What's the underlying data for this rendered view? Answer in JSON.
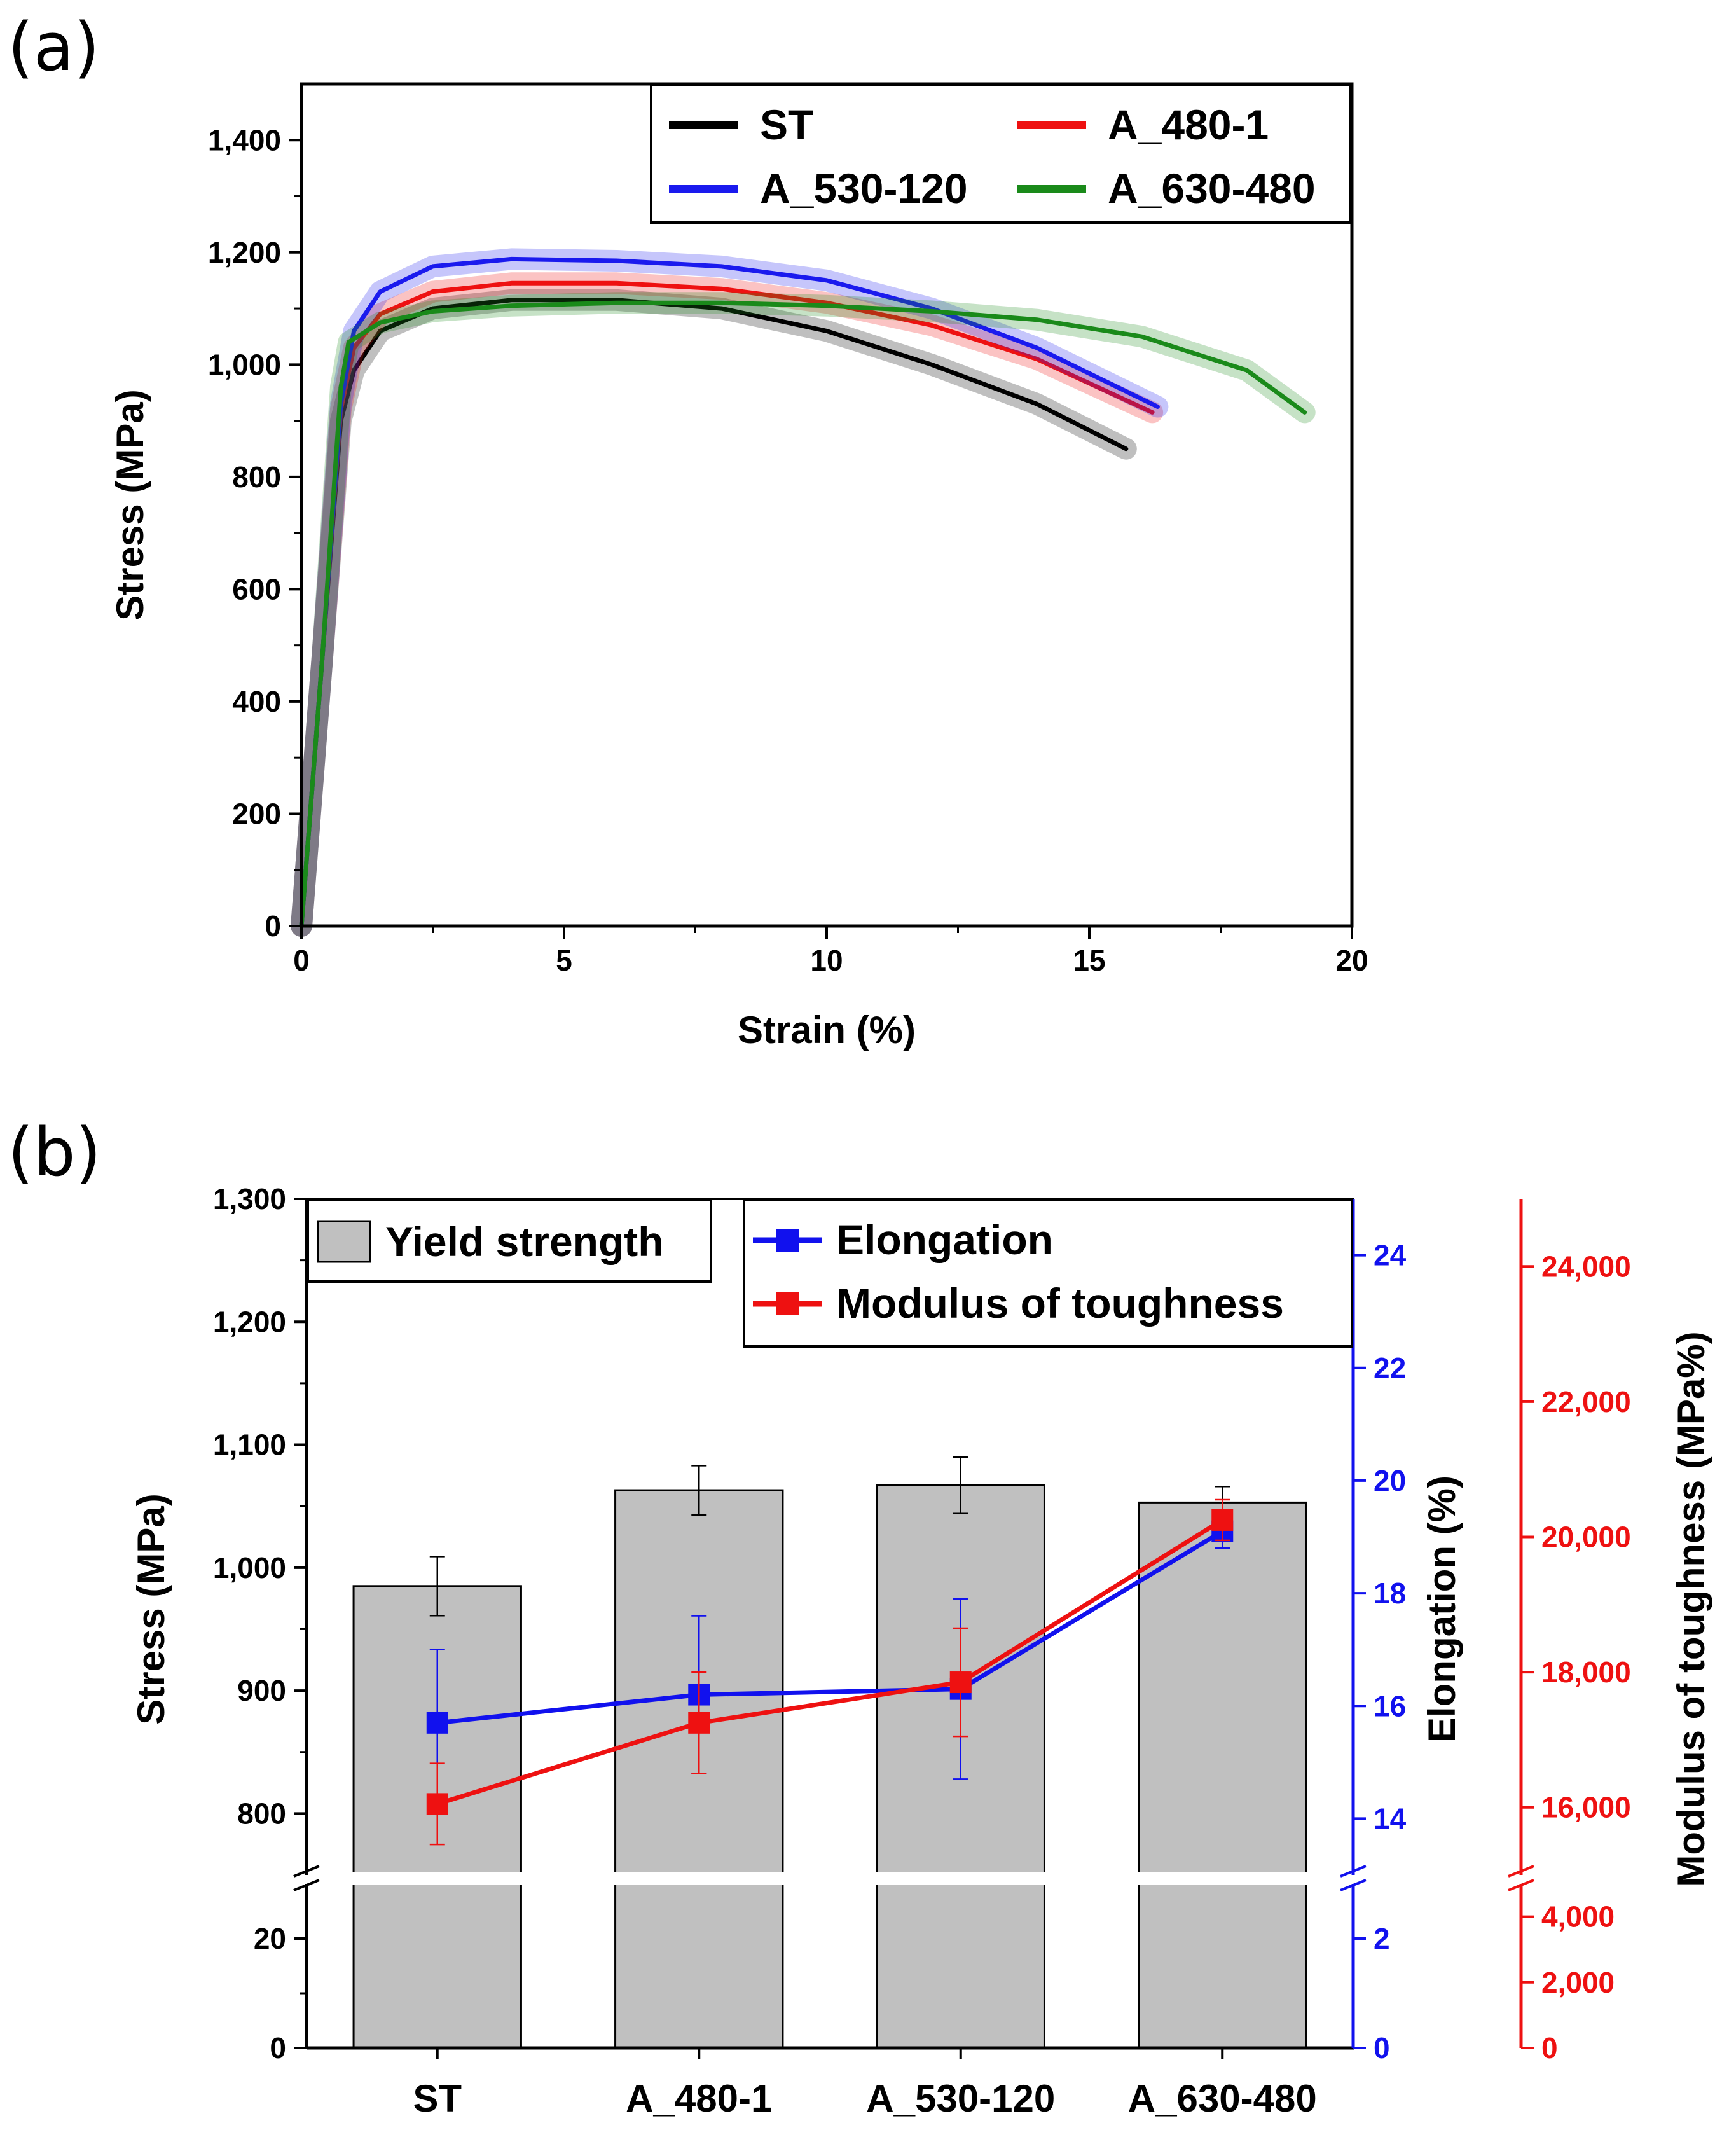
{
  "chart_data": [
    {
      "panel_label": "(a)",
      "type": "line",
      "title": "",
      "xlabel": "Strain (%)",
      "ylabel": "Stress (MPa)",
      "xlim": [
        0,
        20
      ],
      "ylim": [
        0,
        1500
      ],
      "xticks": [
        0,
        5,
        10,
        15,
        20
      ],
      "xtick_labels": [
        "0",
        "5",
        "10",
        "15",
        "20"
      ],
      "yticks": [
        0,
        200,
        400,
        600,
        800,
        1000,
        1200,
        1400
      ],
      "ytick_labels": [
        "0",
        "200",
        "400",
        "600",
        "800",
        "1,000",
        "1,200",
        "1,400"
      ],
      "grid": false,
      "legend_position": "top-right",
      "series": [
        {
          "name": "ST",
          "color": "#000000",
          "x": [
            0,
            0.4,
            0.75,
            1.0,
            1.5,
            2.5,
            4,
            6,
            8,
            10,
            12,
            14,
            15.7
          ],
          "y": [
            0,
            480,
            900,
            990,
            1060,
            1100,
            1115,
            1115,
            1100,
            1060,
            1000,
            930,
            850
          ]
        },
        {
          "name": "A_480-1",
          "color": "#ee1111",
          "x": [
            0,
            0.4,
            0.75,
            1.0,
            1.5,
            2.5,
            4,
            6,
            8,
            10,
            12,
            14,
            16.2
          ],
          "y": [
            0,
            480,
            920,
            1030,
            1090,
            1130,
            1145,
            1145,
            1135,
            1110,
            1070,
            1010,
            915
          ]
        },
        {
          "name": "A_530-120",
          "color": "#1a1aee",
          "x": [
            0,
            0.4,
            0.75,
            1.0,
            1.5,
            2.5,
            4,
            6,
            8,
            10,
            12,
            14,
            16.3
          ],
          "y": [
            0,
            480,
            930,
            1060,
            1130,
            1175,
            1188,
            1185,
            1175,
            1150,
            1100,
            1030,
            925
          ]
        },
        {
          "name": "A_630-480",
          "color": "#1a8a1a",
          "x": [
            0,
            0.4,
            0.75,
            0.9,
            1.5,
            2.5,
            4,
            6,
            8,
            10,
            12,
            14,
            16,
            18,
            19.1
          ],
          "y": [
            0,
            480,
            960,
            1040,
            1075,
            1095,
            1105,
            1110,
            1110,
            1105,
            1095,
            1080,
            1050,
            990,
            915
          ]
        }
      ]
    },
    {
      "panel_label": "(b)",
      "type": "bar",
      "categories": [
        "ST",
        "A_480-1",
        "A_530-120",
        "A_630-480"
      ],
      "ylabel": "Stress (MPa)",
      "y2label": "Elongation (%)",
      "y3label": "Modulus of toughness (MPa%)",
      "axis_break": true,
      "ylim_upper": [
        750,
        1300
      ],
      "ylim_lower": [
        0,
        30
      ],
      "yticks": [
        800,
        900,
        1000,
        1100,
        1200,
        1300,
        0,
        20
      ],
      "ytick_labels": [
        "800",
        "900",
        "1,000",
        "1,100",
        "1,200",
        "1,300",
        "0",
        "20"
      ],
      "y2lim_upper": [
        13,
        25
      ],
      "y2lim_lower": [
        0,
        3
      ],
      "y2ticks": [
        14,
        16,
        18,
        20,
        22,
        24,
        0,
        2
      ],
      "y2tick_labels": [
        "14",
        "16",
        "18",
        "20",
        "22",
        "24",
        "0",
        "2"
      ],
      "y3lim_upper": [
        15000,
        25000
      ],
      "y3lim_lower": [
        0,
        5000
      ],
      "y3ticks": [
        16000,
        18000,
        20000,
        22000,
        24000,
        0,
        2000,
        4000
      ],
      "y3tick_labels": [
        "16,000",
        "18,000",
        "20,000",
        "22,000",
        "24,000",
        "0",
        "2,000",
        "4,000"
      ],
      "legends": {
        "bar": "Yield strength",
        "lines": [
          "Elongation",
          "Modulus of toughness"
        ]
      },
      "series": [
        {
          "name": "Yield strength",
          "kind": "bar",
          "axis": "left",
          "color": "#c0c0c0",
          "values": [
            985,
            1063,
            1067,
            1053
          ],
          "errors": [
            24,
            20,
            23,
            13
          ]
        },
        {
          "name": "Elongation",
          "kind": "line",
          "axis": "right",
          "color": "#1111ee",
          "values": [
            15.7,
            16.2,
            16.3,
            19.1
          ],
          "errors": [
            1.3,
            1.4,
            1.6,
            0.3
          ]
        },
        {
          "name": "Modulus of toughness",
          "kind": "line",
          "axis": "right2",
          "color": "#ee1111",
          "values": [
            16050,
            17250,
            17850,
            20250
          ],
          "errors": [
            600,
            750,
            800,
            300
          ]
        }
      ]
    }
  ]
}
